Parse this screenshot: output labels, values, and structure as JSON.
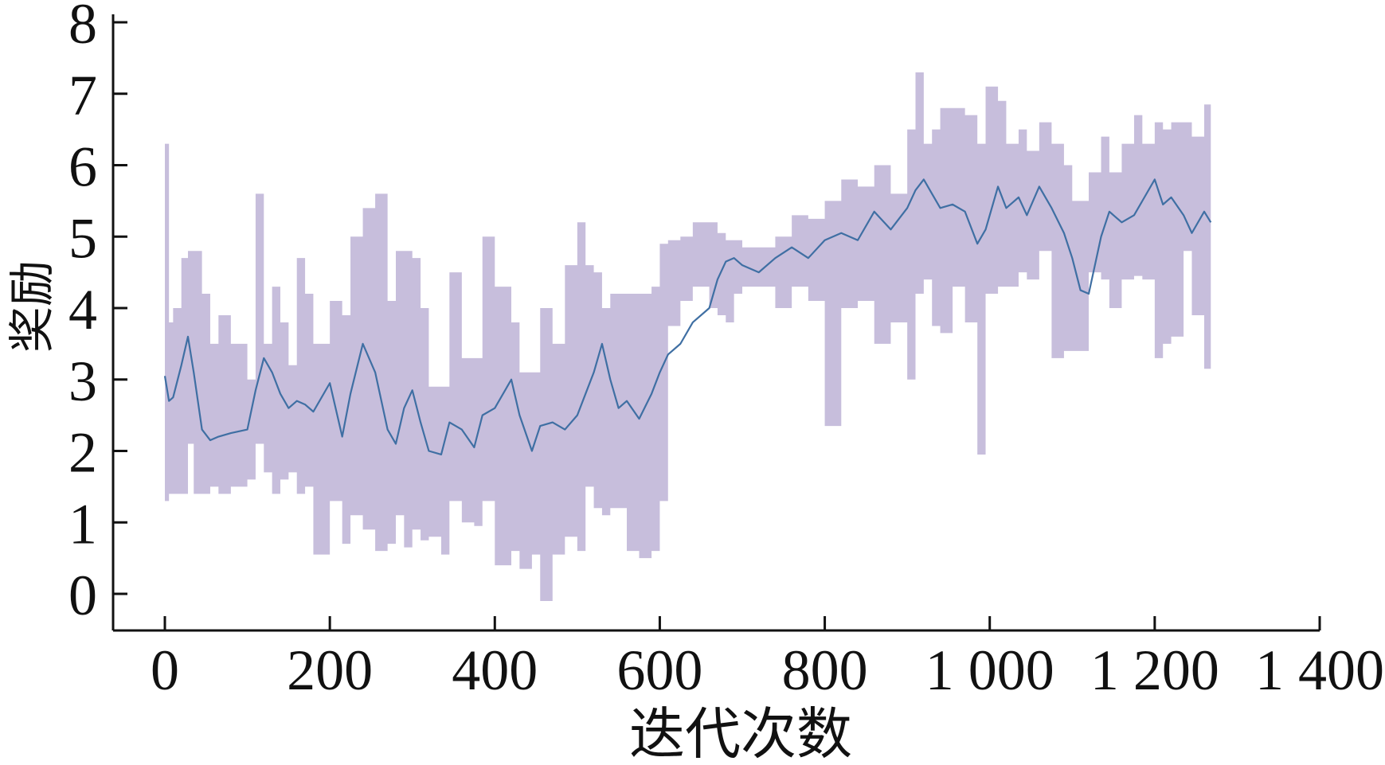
{
  "chart_data": {
    "type": "line",
    "title": "",
    "xlabel": "迭代次数",
    "ylabel": "奖励",
    "xlim": [
      -60,
      1400
    ],
    "ylim": [
      -0.5,
      8
    ],
    "x_ticks": [
      0,
      200,
      400,
      600,
      800,
      1000,
      1200,
      1400
    ],
    "x_tick_labels": [
      "0",
      "200",
      "400",
      "600",
      "800",
      "1 000",
      "1 200",
      "1 400"
    ],
    "y_ticks": [
      0,
      1,
      2,
      3,
      4,
      5,
      6,
      7,
      8
    ],
    "y_tick_labels": [
      "0",
      "1",
      "2",
      "3",
      "4",
      "5",
      "6",
      "7",
      "8"
    ],
    "grid": false,
    "colors": {
      "line": "#3f6fa3",
      "band": "#c7bedc",
      "axis": "#111111"
    },
    "series": [
      {
        "x": [
          0,
          5,
          10,
          20,
          28,
          35,
          45,
          55,
          65,
          80,
          100,
          110,
          120,
          130,
          140,
          150,
          160,
          170,
          180,
          200,
          215,
          225,
          240,
          255,
          270,
          280,
          290,
          300,
          310,
          320,
          335,
          345,
          360,
          375,
          385,
          400,
          420,
          430,
          445,
          455,
          470,
          485,
          500,
          510,
          520,
          530,
          540,
          550,
          560,
          575,
          590,
          600,
          610,
          625,
          640,
          660,
          670,
          680,
          690,
          700,
          720,
          740,
          760,
          780,
          800,
          820,
          840,
          860,
          880,
          900,
          910,
          920,
          930,
          940,
          955,
          970,
          985,
          995,
          1010,
          1020,
          1035,
          1045,
          1060,
          1075,
          1090,
          1100,
          1110,
          1120,
          1135,
          1145,
          1160,
          1175,
          1185,
          1200,
          1210,
          1220,
          1235,
          1245,
          1260,
          1268
        ],
        "y": [
          3.05,
          2.7,
          2.75,
          3.2,
          3.6,
          3.1,
          2.3,
          2.15,
          2.2,
          2.25,
          2.3,
          2.85,
          3.3,
          3.1,
          2.8,
          2.6,
          2.7,
          2.65,
          2.55,
          2.95,
          2.2,
          2.8,
          3.5,
          3.1,
          2.3,
          2.1,
          2.6,
          2.85,
          2.4,
          2.0,
          1.95,
          2.4,
          2.3,
          2.05,
          2.5,
          2.6,
          3.0,
          2.5,
          2.0,
          2.35,
          2.4,
          2.3,
          2.5,
          2.8,
          3.1,
          3.5,
          3.0,
          2.6,
          2.7,
          2.45,
          2.8,
          3.1,
          3.35,
          3.5,
          3.8,
          4.0,
          4.4,
          4.65,
          4.7,
          4.6,
          4.5,
          4.7,
          4.85,
          4.7,
          4.95,
          5.05,
          4.95,
          5.35,
          5.1,
          5.4,
          5.65,
          5.8,
          5.6,
          5.4,
          5.45,
          5.35,
          4.9,
          5.1,
          5.7,
          5.4,
          5.55,
          5.3,
          5.7,
          5.4,
          5.05,
          4.7,
          4.25,
          4.2,
          5.0,
          5.35,
          5.2,
          5.3,
          5.5,
          5.8,
          5.45,
          5.55,
          5.3,
          5.05,
          5.35,
          5.2
        ],
        "upper": [
          6.3,
          3.8,
          4.0,
          4.7,
          4.8,
          4.8,
          4.2,
          3.5,
          3.9,
          3.5,
          3.0,
          5.6,
          3.5,
          4.3,
          3.8,
          3.2,
          4.7,
          4.2,
          3.5,
          4.1,
          3.9,
          5.0,
          5.4,
          5.6,
          4.1,
          4.8,
          4.8,
          4.7,
          4.0,
          2.9,
          2.9,
          4.5,
          3.3,
          3.3,
          5.0,
          4.3,
          3.8,
          3.1,
          3.1,
          4.0,
          3.5,
          4.6,
          5.2,
          4.6,
          4.5,
          4.0,
          4.2,
          4.2,
          4.2,
          4.2,
          4.3,
          4.9,
          4.95,
          5.0,
          5.2,
          5.2,
          5.05,
          4.95,
          4.95,
          4.85,
          4.85,
          5.0,
          5.3,
          5.25,
          5.5,
          5.8,
          5.7,
          6.0,
          5.6,
          6.5,
          7.3,
          6.3,
          6.5,
          6.8,
          6.8,
          6.7,
          6.3,
          7.1,
          6.9,
          6.3,
          6.5,
          6.2,
          6.6,
          6.3,
          6.0,
          5.5,
          5.5,
          5.9,
          6.4,
          5.9,
          6.3,
          6.7,
          6.3,
          6.6,
          6.5,
          6.6,
          6.6,
          6.4,
          6.85,
          6.2
        ],
        "lower": [
          1.3,
          1.4,
          1.4,
          1.4,
          2.1,
          1.4,
          1.4,
          1.5,
          1.4,
          1.5,
          1.6,
          2.1,
          1.7,
          1.4,
          1.6,
          1.7,
          1.4,
          1.5,
          0.55,
          1.3,
          0.7,
          1.1,
          0.9,
          0.6,
          0.7,
          1.1,
          0.65,
          0.9,
          0.75,
          0.8,
          0.55,
          1.3,
          1.0,
          0.95,
          1.3,
          0.4,
          0.6,
          0.35,
          0.55,
          -0.1,
          0.55,
          0.8,
          0.6,
          1.5,
          1.2,
          1.1,
          1.2,
          1.2,
          0.6,
          0.5,
          0.6,
          1.3,
          3.75,
          4.1,
          4.3,
          4.0,
          3.9,
          3.8,
          4.2,
          4.3,
          4.3,
          4.0,
          4.3,
          4.1,
          2.35,
          4.0,
          4.1,
          3.5,
          3.8,
          3.0,
          4.2,
          4.4,
          3.75,
          3.65,
          4.3,
          3.8,
          1.95,
          4.2,
          4.3,
          4.3,
          4.5,
          4.4,
          4.8,
          3.3,
          3.4,
          3.4,
          3.4,
          4.5,
          4.4,
          4.0,
          4.4,
          4.45,
          4.4,
          3.3,
          3.5,
          3.6,
          4.8,
          3.9,
          3.15,
          3.2
        ]
      }
    ]
  }
}
